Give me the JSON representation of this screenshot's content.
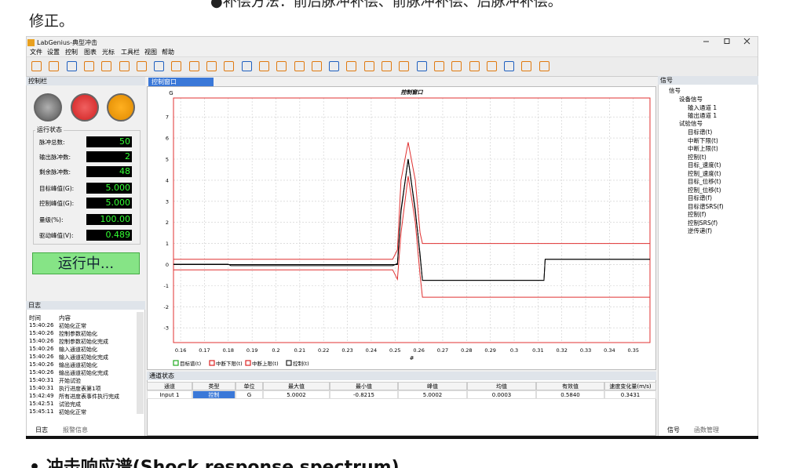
{
  "doc": {
    "top_text": "●补偿方法：前后脉冲补偿、前脉冲补偿、后脉冲补偿。",
    "line2": "修正。",
    "bottom_heading": "• 冲击响应谱(Shock response spectrum)"
  },
  "app": {
    "title": "LabGenius-典型冲击",
    "menu": [
      "文件",
      "设置",
      "控制",
      "图表",
      "光标",
      "工具栏",
      "视图",
      "帮助"
    ],
    "control_panel": {
      "title": "控制栏",
      "group": "运行状态",
      "rows": [
        {
          "label": "脉冲总数:",
          "value": "50"
        },
        {
          "label": "输出脉冲数:",
          "value": "2"
        },
        {
          "label": "剩余脉冲数:",
          "value": "48"
        },
        {
          "label": "目标峰值(G):",
          "value": "5.000"
        },
        {
          "label": "控制峰值(G):",
          "value": "5.000"
        },
        {
          "label": "量级(%):",
          "value": "100.00"
        },
        {
          "label": "驱动峰值(V):",
          "value": "0.489"
        }
      ],
      "status_button": "运行中..."
    },
    "log": {
      "title": "日志",
      "columns": [
        "时间",
        "内容"
      ],
      "entries": [
        [
          "15:40:26",
          "初始化正常"
        ],
        [
          "15:40:26",
          "控制参数初始化"
        ],
        [
          "15:40:26",
          "控制参数初始化完成"
        ],
        [
          "15:40:26",
          "输入通道初始化"
        ],
        [
          "15:40:26",
          "输入通道初始化完成"
        ],
        [
          "15:40:26",
          "输出通道初始化"
        ],
        [
          "15:40:26",
          "输出通道初始化完成"
        ],
        [
          "15:40:31",
          "开始试验"
        ],
        [
          "15:40:31",
          "执行进度表第1项"
        ],
        [
          "15:42:49",
          "所有进度表事件执行完成"
        ],
        [
          "15:42:51",
          "试验完成"
        ],
        [
          "15:45:11",
          "初始化正常"
        ]
      ],
      "tabs": [
        "日志",
        "报警信息"
      ]
    },
    "plot_tab": "控制窗口",
    "channel_status": {
      "title": "通道状态",
      "columns": [
        "通道",
        "类型",
        "单位",
        "最大值",
        "最小值",
        "峰值",
        "均值",
        "有效值",
        "速度变化量(m/s)"
      ],
      "rows": [
        [
          "Input 1",
          "控制",
          "G",
          "5.0002",
          "-0.8215",
          "5.0002",
          "0.0003",
          "0.5840",
          "0.3431"
        ]
      ]
    },
    "signal_panel": {
      "title": "信号",
      "root": "信号",
      "device": {
        "label": "设备信号",
        "children": [
          "输入通道 1",
          "输出通道 1"
        ]
      },
      "test": {
        "label": "试验信号",
        "children": [
          "目标谱(t)",
          "中断下限(t)",
          "中断上限(t)",
          "控制(t)",
          "目标_速度(t)",
          "控制_速度(t)",
          "目标_位移(t)",
          "控制_位移(t)",
          "目标谱(f)",
          "目标谱SRS(f)",
          "控制(f)",
          "控制SRS(f)",
          "逆传递(f)"
        ]
      },
      "tabs": [
        "信号",
        "函数管理"
      ]
    }
  },
  "chart_data": {
    "type": "line",
    "title": "控制窗口",
    "ylabel": "G",
    "xlabel": "#",
    "x": [
      0.157,
      0.18,
      0.181,
      0.249,
      0.251,
      0.2525,
      0.2555,
      0.2585,
      0.2605,
      0.2615,
      0.3125,
      0.313,
      0.357
    ],
    "series": [
      {
        "name": "目标谱(t)",
        "color": "#000000",
        "values": [
          0,
          0,
          0,
          0,
          0,
          2.5,
          5,
          2.5,
          0.5,
          -0.75,
          -0.75,
          0.25,
          0.25
        ]
      },
      {
        "name": "中断下限(t)",
        "color": "#e03030",
        "values": [
          -0.25,
          -0.25,
          -0.25,
          -0.25,
          -0.7,
          1.5,
          4.2,
          2.0,
          -0.5,
          -1.55,
          -1.55,
          -1.55,
          -1.55
        ]
      },
      {
        "name": "中断上限(t)",
        "color": "#e03030",
        "values": [
          0.25,
          0.25,
          0.25,
          0.25,
          0.7,
          4.0,
          5.8,
          4.0,
          1.5,
          1.0,
          1.0,
          1.0,
          1.0
        ]
      },
      {
        "name": "控制(t)",
        "color": "#000000",
        "values": [
          0.02,
          0.02,
          -0.05,
          -0.05,
          0.05,
          2.6,
          5.0,
          2.6,
          0.4,
          -0.75,
          -0.75,
          0.25,
          0.25
        ]
      }
    ],
    "xlim": [
      0.157,
      0.357
    ],
    "ylim": [
      -3.7,
      7.9
    ],
    "xticks": [
      0.16,
      0.17,
      0.18,
      0.19,
      0.2,
      0.21,
      0.22,
      0.23,
      0.24,
      0.25,
      0.26,
      0.27,
      0.28,
      0.29,
      0.3,
      0.31,
      0.32,
      0.33,
      0.34,
      0.35
    ],
    "yticks": [
      -3,
      -2,
      -1,
      0,
      1,
      2,
      3,
      4,
      5,
      6,
      7
    ],
    "grid": true,
    "frame_color": "#e03030"
  }
}
